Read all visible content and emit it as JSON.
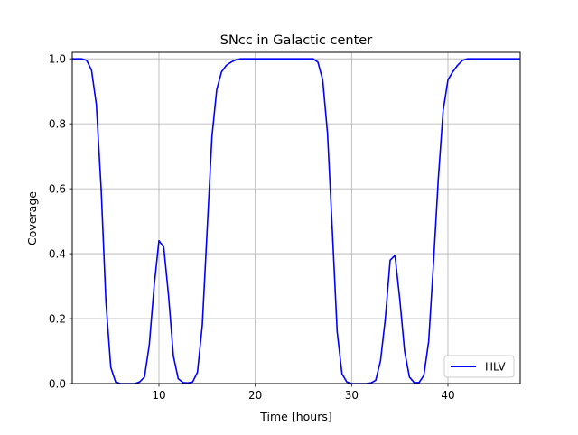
{
  "chart_data": {
    "type": "line",
    "title": "SNcc in Galactic center",
    "xlabel": "Time [hours]",
    "ylabel": "Coverage",
    "xlim": [
      1,
      47.5
    ],
    "ylim": [
      0,
      1.02
    ],
    "xticks": [
      10,
      20,
      30,
      40
    ],
    "xtick_labels": [
      "10",
      "20",
      "30",
      "40"
    ],
    "yticks": [
      0.0,
      0.2,
      0.4,
      0.6,
      0.8,
      1.0
    ],
    "ytick_labels": [
      "0.0",
      "0.2",
      "0.4",
      "0.6",
      "0.8",
      "1.0"
    ],
    "grid": true,
    "legend": "lower right",
    "series": [
      {
        "name": "HLV",
        "color": "#0000ff",
        "x": [
          1,
          2,
          2.5,
          3,
          3.5,
          4,
          4.5,
          5,
          5.5,
          6,
          6.5,
          7,
          7.5,
          8,
          8.5,
          9,
          9.5,
          10,
          10.5,
          11,
          11.5,
          12,
          12.5,
          13,
          13.5,
          14,
          14.5,
          15,
          15.5,
          16,
          16.5,
          17,
          17.5,
          18,
          18.5,
          19,
          20,
          21,
          22,
          23,
          24,
          25,
          26,
          26.5,
          27,
          27.5,
          28,
          28.5,
          29,
          29.5,
          30,
          30.5,
          31,
          31.5,
          32,
          32.5,
          33,
          33.5,
          34,
          34.5,
          35,
          35.5,
          36,
          36.5,
          37,
          37.5,
          38,
          38.5,
          39,
          39.5,
          40,
          40.5,
          41,
          41.5,
          42,
          43,
          44,
          45,
          46,
          47.5
        ],
        "y": [
          1.0,
          1.0,
          0.995,
          0.965,
          0.86,
          0.6,
          0.25,
          0.05,
          0.005,
          0.0,
          0.0,
          0.0,
          0.0,
          0.005,
          0.02,
          0.12,
          0.3,
          0.44,
          0.42,
          0.27,
          0.085,
          0.015,
          0.003,
          0.002,
          0.005,
          0.035,
          0.18,
          0.47,
          0.76,
          0.905,
          0.96,
          0.98,
          0.99,
          0.997,
          1.0,
          1.0,
          1.0,
          1.0,
          1.0,
          1.0,
          1.0,
          1.0,
          1.0,
          0.99,
          0.935,
          0.77,
          0.47,
          0.16,
          0.03,
          0.005,
          0.0,
          0.0,
          0.0,
          0.0,
          0.002,
          0.01,
          0.07,
          0.2,
          0.38,
          0.395,
          0.26,
          0.1,
          0.02,
          0.003,
          0.003,
          0.025,
          0.13,
          0.37,
          0.63,
          0.84,
          0.935,
          0.96,
          0.98,
          0.995,
          1.0,
          1.0,
          1.0,
          1.0,
          1.0,
          1.0
        ]
      }
    ]
  }
}
